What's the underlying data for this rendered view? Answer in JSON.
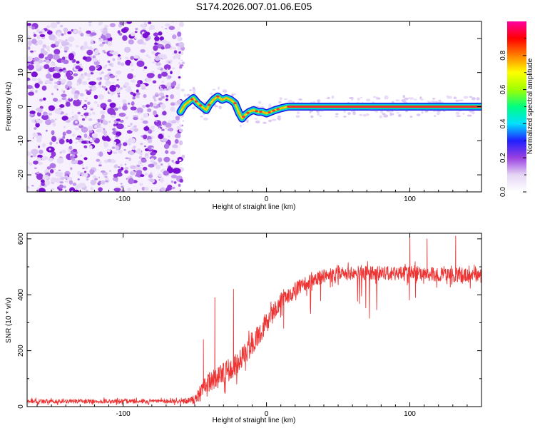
{
  "title": "S174.2026.007.01.06.E05",
  "chart_data": [
    {
      "type": "heatmap",
      "title": "S174.2026.007.01.06.E05",
      "xlabel": "Height of straight line (km)",
      "ylabel": "Frequency (Hz)",
      "xlim": [
        -167,
        150
      ],
      "ylim": [
        -25,
        25
      ],
      "xticks": [
        -100,
        0,
        100
      ],
      "xtick_labels": [
        "-100",
        "0",
        "100"
      ],
      "yticks": [
        -20,
        -10,
        0,
        10,
        20
      ],
      "ytick_labels": [
        "-20",
        "-10",
        "0",
        "10",
        "20"
      ],
      "grid": false,
      "noise_region_x": [
        -167,
        -60
      ],
      "ridge": {
        "x": [
          -60,
          -57,
          -54,
          -51,
          -48,
          -45,
          -42,
          -40,
          -37,
          -34,
          -31,
          -28,
          -25,
          -22,
          -19,
          -17,
          -15,
          -12,
          -9,
          -6,
          -3,
          0,
          3,
          6,
          10,
          15,
          20,
          30,
          50,
          80,
          100,
          125,
          150
        ],
        "y": [
          -1.5,
          0.5,
          1.5,
          2.5,
          1,
          0,
          -1,
          0.5,
          2,
          3,
          2,
          2.5,
          2,
          1,
          -2,
          -3.5,
          -2.5,
          -1.5,
          -1,
          -1.5,
          -1.5,
          -2,
          -1.5,
          -1,
          -0.5,
          0,
          0,
          0,
          0,
          0,
          0,
          0,
          0
        ]
      },
      "colorbar": {
        "label": "Normalized spectral amplitude",
        "range": [
          0.0,
          1.0
        ],
        "ticks": [
          0.0,
          0.2,
          0.4,
          0.6,
          0.8
        ],
        "tick_labels": [
          "0.0",
          "0.2",
          "0.4",
          "0.6",
          "0.8"
        ],
        "colors": [
          "#ffffff",
          "#e5d5f5",
          "#9a40e0",
          "#2020ff",
          "#00e0ff",
          "#00ff80",
          "#a0ff00",
          "#ffff00",
          "#ff8000",
          "#ff0000",
          "#ff00a0"
        ]
      }
    },
    {
      "type": "line",
      "xlabel": "Height of straight line (km)",
      "ylabel": "SNR (10 * v/v)",
      "xlim": [
        -167,
        150
      ],
      "ylim": [
        0,
        620
      ],
      "xticks": [
        -100,
        0,
        100
      ],
      "xtick_labels": [
        "-100",
        "0",
        "100"
      ],
      "yticks": [
        0,
        200,
        400,
        600
      ],
      "ytick_labels": [
        "0",
        "200",
        "400",
        "600"
      ],
      "grid": false,
      "series": [
        {
          "name": "SNR",
          "color": "#ee3333",
          "envelope": {
            "x": [
              -167,
              -60,
              -50,
              -45,
              -40,
              -30,
              -20,
              -10,
              0,
              10,
              20,
              30,
              40,
              60,
              80,
              100,
              120,
              150
            ],
            "y": [
              20,
              20,
              25,
              60,
              90,
              120,
              160,
              230,
              300,
              380,
              420,
              450,
              470,
              480,
              480,
              480,
              475,
              470
            ]
          },
          "noise_amplitude": {
            "x": [
              -167,
              -60,
              -50,
              -45,
              -40,
              -30,
              -10,
              10,
              30,
              150
            ],
            "y": [
              15,
              15,
              30,
              70,
              70,
              80,
              80,
              60,
              50,
              50
            ]
          },
          "spikes": [
            {
              "x": -44,
              "y": 240
            },
            {
              "x": -36,
              "y": 390
            },
            {
              "x": -23,
              "y": 420
            },
            {
              "x": -2,
              "y": 250
            },
            {
              "x": 12,
              "y": 280
            },
            {
              "x": 100,
              "y": 620
            },
            {
              "x": 112,
              "y": 600
            },
            {
              "x": 132,
              "y": 610
            }
          ]
        }
      ]
    }
  ]
}
